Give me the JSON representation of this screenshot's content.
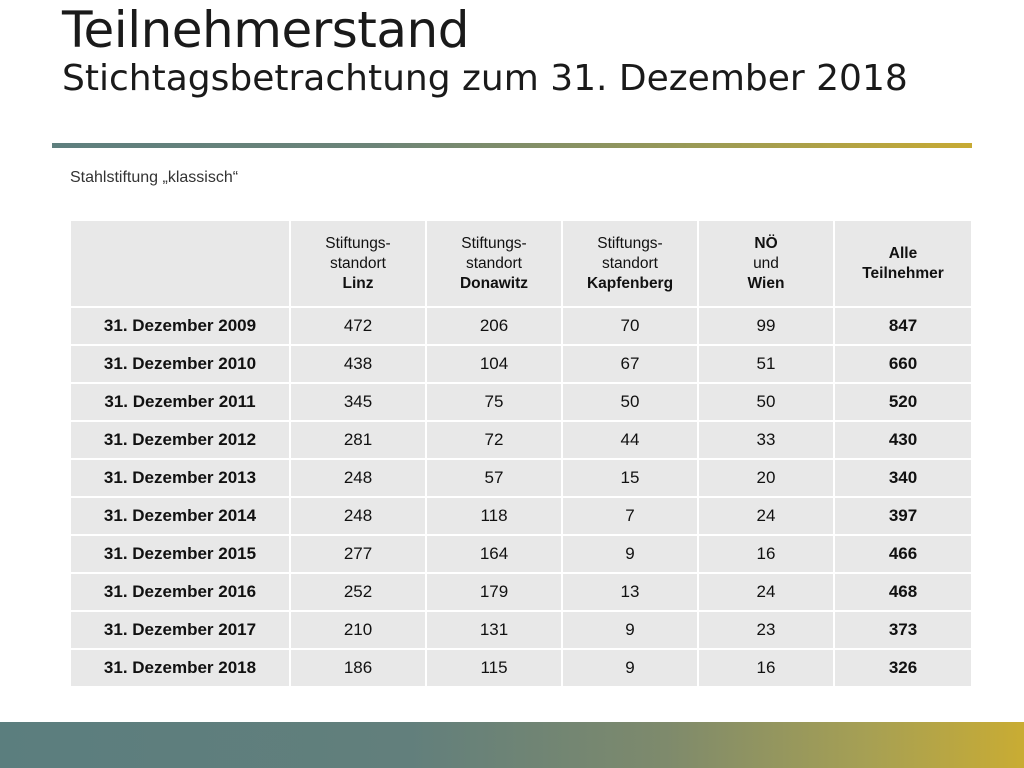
{
  "header": {
    "title": "Teilnehmerstand",
    "subtitle": "Stichtagsbetrachtung zum 31. Dezember 2018"
  },
  "caption": "Stahlstiftung „klassisch“",
  "table": {
    "columns": [
      {
        "line1": "",
        "line2": "",
        "line3": ""
      },
      {
        "line1": "Stiftungs-",
        "line2": "standort",
        "line3": "Linz"
      },
      {
        "line1": "Stiftungs-",
        "line2": "standort",
        "line3": "Donawitz"
      },
      {
        "line1": "Stiftungs-",
        "line2": "standort",
        "line3": "Kapfenberg"
      },
      {
        "line1": "NÖ",
        "line2": "und",
        "line3": "Wien"
      },
      {
        "line1": "Alle",
        "line2": "Teilnehmer",
        "line3": ""
      }
    ],
    "rows": [
      {
        "date": "31. Dezember 2009",
        "linz": "472",
        "donawitz": "206",
        "kapfenberg": "70",
        "noe_wien": "99",
        "total": "847"
      },
      {
        "date": "31. Dezember 2010",
        "linz": "438",
        "donawitz": "104",
        "kapfenberg": "67",
        "noe_wien": "51",
        "total": "660"
      },
      {
        "date": "31. Dezember 2011",
        "linz": "345",
        "donawitz": "75",
        "kapfenberg": "50",
        "noe_wien": "50",
        "total": "520"
      },
      {
        "date": "31. Dezember 2012",
        "linz": "281",
        "donawitz": "72",
        "kapfenberg": "44",
        "noe_wien": "33",
        "total": "430"
      },
      {
        "date": "31. Dezember 2013",
        "linz": "248",
        "donawitz": "57",
        "kapfenberg": "15",
        "noe_wien": "20",
        "total": "340"
      },
      {
        "date": "31. Dezember 2014",
        "linz": "248",
        "donawitz": "118",
        "kapfenberg": "7",
        "noe_wien": "24",
        "total": "397"
      },
      {
        "date": "31. Dezember 2015",
        "linz": "277",
        "donawitz": "164",
        "kapfenberg": "9",
        "noe_wien": "16",
        "total": "466"
      },
      {
        "date": "31. Dezember 2016",
        "linz": "252",
        "donawitz": "179",
        "kapfenberg": "13",
        "noe_wien": "24",
        "total": "468"
      },
      {
        "date": "31. Dezember 2017",
        "linz": "210",
        "donawitz": "131",
        "kapfenberg": "9",
        "noe_wien": "23",
        "total": "373"
      },
      {
        "date": "31. Dezember 2018",
        "linz": "186",
        "donawitz": "115",
        "kapfenberg": "9",
        "noe_wien": "16",
        "total": "326"
      }
    ]
  },
  "colors": {
    "accent_teal": "#5b7e7e",
    "accent_gold": "#c9ac33",
    "cell_background": "#e8e8e8"
  }
}
